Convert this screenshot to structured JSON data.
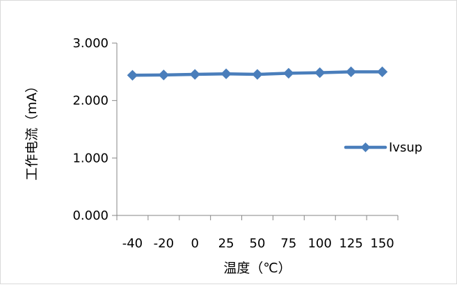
{
  "chart_data": {
    "type": "line",
    "title": "",
    "xlabel": "温度（℃）",
    "ylabel": "工作电流（mA）",
    "categories": [
      "-40",
      "-20",
      "0",
      "25",
      "50",
      "75",
      "100",
      "125",
      "150"
    ],
    "series": [
      {
        "name": "Ivsup",
        "values": [
          2.44,
          2.445,
          2.455,
          2.465,
          2.455,
          2.475,
          2.485,
          2.5,
          2.5
        ],
        "color": "#4A7EBB",
        "marker": "diamond"
      }
    ],
    "ylim": [
      0,
      3
    ],
    "yticks": [
      "0.000",
      "1.000",
      "2.000",
      "3.000"
    ],
    "grid": false,
    "legend_position": "right"
  }
}
